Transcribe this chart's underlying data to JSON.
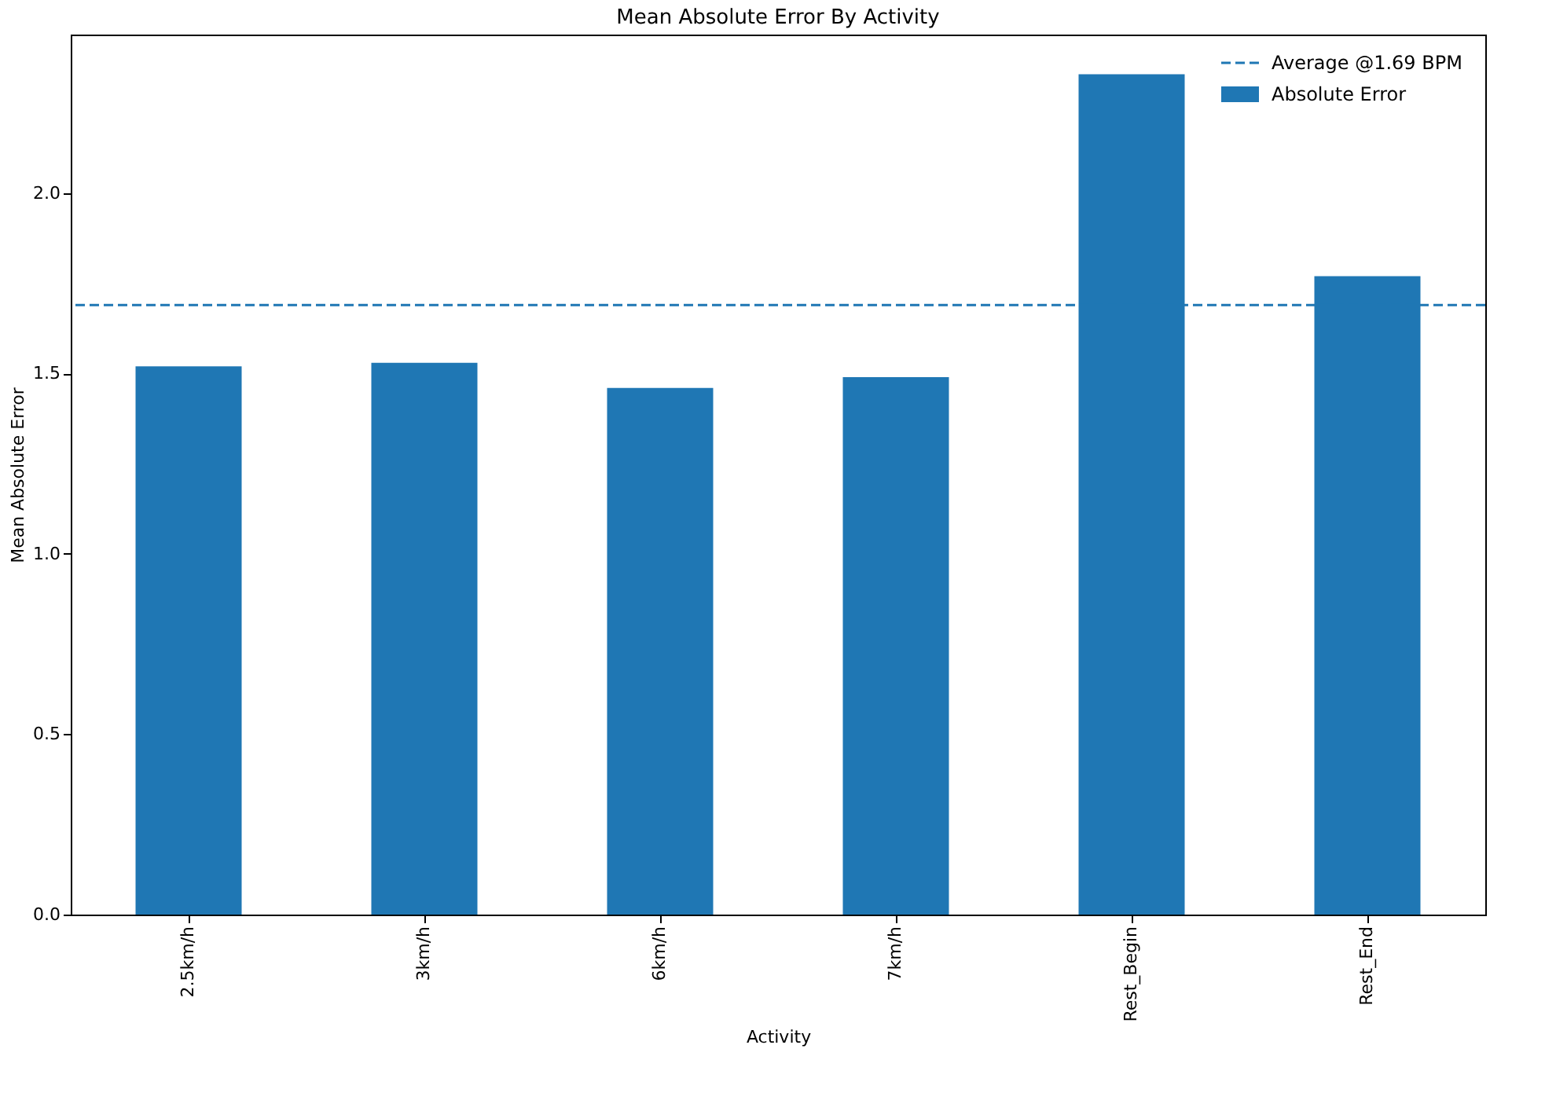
{
  "chart_data": {
    "type": "bar",
    "title": "Mean Absolute Error By Activity",
    "xlabel": "Activity",
    "ylabel": "Mean Absolute Error",
    "categories": [
      "2.5km/h",
      "3km/h",
      "6km/h",
      "7km/h",
      "Rest_Begin",
      "Rest_End"
    ],
    "series": [
      {
        "name": "Absolute Error",
        "color": "#1f77b4",
        "values": [
          1.52,
          1.53,
          1.46,
          1.49,
          2.33,
          1.77
        ]
      }
    ],
    "ylim": [
      0,
      2.44
    ],
    "yticks": [
      {
        "value": 0,
        "label": "0.0"
      },
      0.5,
      {
        "value": 1,
        "label": "1.0"
      },
      1.5,
      {
        "value": 2,
        "label": "2.0"
      }
    ],
    "ref_lines": [
      {
        "axis": "y",
        "value": 1.69,
        "label": "Average @1.69 BPM",
        "color": "#1f77b4",
        "line_style": "dashed"
      }
    ],
    "grid": false,
    "legend": "top right"
  }
}
